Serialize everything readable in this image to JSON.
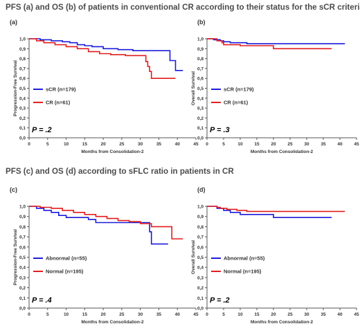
{
  "section_titles": {
    "top": "PFS (a) and OS (b) of patients in conventional CR according to their status for the sCR criteria",
    "bottom": "PFS (c) and OS (d) according to sFLC ratio in patients in CR"
  },
  "colors": {
    "blue": "#1a1adb",
    "red": "#e31b1b",
    "axis": "#555555",
    "text": "#333333"
  },
  "chart_data": [
    {
      "panel": "(a)",
      "type": "line",
      "step": true,
      "ylabel": "Progression-Free Survival",
      "xlabel": "Months from Consolidation-2",
      "xlim": [
        0,
        45
      ],
      "ylim": [
        0,
        1.0
      ],
      "xticks": [
        0,
        5,
        10,
        15,
        20,
        25,
        30,
        35,
        40,
        45
      ],
      "yticks": [
        "0,0",
        "0,1",
        "0,2",
        "0,3",
        "0,4",
        "0,5",
        "0,6",
        "0,7",
        "0,8",
        "0,9",
        "1,0"
      ],
      "legend_position": "left",
      "annotation": "P = .2",
      "series": [
        {
          "name": "sCR (n=179)",
          "color": "blue",
          "points": [
            [
              0,
              1.0
            ],
            [
              3,
              0.99
            ],
            [
              6,
              0.98
            ],
            [
              9,
              0.97
            ],
            [
              11,
              0.96
            ],
            [
              13,
              0.94
            ],
            [
              15,
              0.93
            ],
            [
              17,
              0.92
            ],
            [
              20,
              0.9
            ],
            [
              24,
              0.89
            ],
            [
              28,
              0.88
            ],
            [
              32,
              0.88
            ],
            [
              37.5,
              0.88
            ],
            [
              38,
              0.78
            ],
            [
              39.5,
              0.78
            ],
            [
              39.5,
              0.68
            ],
            [
              41.5,
              0.68
            ]
          ]
        },
        {
          "name": "CR (n=61)",
          "color": "red",
          "points": [
            [
              0,
              1.0
            ],
            [
              2,
              0.98
            ],
            [
              4,
              0.96
            ],
            [
              7,
              0.94
            ],
            [
              10,
              0.92
            ],
            [
              13,
              0.9
            ],
            [
              16,
              0.87
            ],
            [
              19,
              0.85
            ],
            [
              22,
              0.84
            ],
            [
              26,
              0.83
            ],
            [
              31,
              0.83
            ],
            [
              31.5,
              0.77
            ],
            [
              32,
              0.72
            ],
            [
              32.5,
              0.67
            ],
            [
              33,
              0.6
            ],
            [
              39.5,
              0.6
            ]
          ]
        }
      ]
    },
    {
      "panel": "(b)",
      "type": "line",
      "step": true,
      "ylabel": "Overall Survival",
      "xlabel": "Months from Consolidation-2",
      "xlim": [
        0,
        45
      ],
      "ylim": [
        0,
        1.0
      ],
      "xticks": [
        0,
        5,
        10,
        15,
        20,
        25,
        30,
        35,
        40,
        45
      ],
      "yticks": [
        "0,0",
        "0,1",
        "0,2",
        "0,3",
        "0,4",
        "0,5",
        "0,6",
        "0,7",
        "0,8",
        "0,9",
        "1,0"
      ],
      "legend_position": "left",
      "annotation": "P = .3",
      "series": [
        {
          "name": "sCR (n=179)",
          "color": "blue",
          "points": [
            [
              0,
              1.0
            ],
            [
              2,
              0.99
            ],
            [
              4,
              0.98
            ],
            [
              5,
              0.97
            ],
            [
              7,
              0.96
            ],
            [
              10,
              0.96
            ],
            [
              12,
              0.95
            ],
            [
              41.5,
              0.95
            ]
          ]
        },
        {
          "name": "CR (n=61)",
          "color": "red",
          "points": [
            [
              0,
              1.0
            ],
            [
              3,
              0.98
            ],
            [
              4.5,
              0.96
            ],
            [
              5,
              0.94
            ],
            [
              10,
              0.93
            ],
            [
              20,
              0.93
            ],
            [
              20,
              0.9
            ],
            [
              37.5,
              0.9
            ]
          ]
        }
      ]
    },
    {
      "panel": "(c)",
      "type": "line",
      "step": true,
      "ylabel": "Progression-Free Survival",
      "xlabel": "Months from Consolidation-2",
      "xlim": [
        0,
        45
      ],
      "ylim": [
        0,
        1.0
      ],
      "xticks": [
        0,
        5,
        10,
        15,
        20,
        25,
        30,
        35,
        40,
        45
      ],
      "yticks": [
        "0,0",
        "0,1",
        "0,2",
        "0,3",
        "0,4",
        "0,5",
        "0,6",
        "0,7",
        "0,8",
        "0,9",
        "1,0"
      ],
      "legend_position": "left",
      "annotation": "P = .4",
      "series": [
        {
          "name": "Abnormal (n=55)",
          "color": "blue",
          "points": [
            [
              0,
              1.0
            ],
            [
              2,
              0.98
            ],
            [
              4,
              0.96
            ],
            [
              6,
              0.94
            ],
            [
              8,
              0.91
            ],
            [
              10,
              0.89
            ],
            [
              15,
              0.89
            ],
            [
              16,
              0.87
            ],
            [
              18,
              0.84
            ],
            [
              32,
              0.84
            ],
            [
              32.5,
              0.75
            ],
            [
              33,
              0.63
            ],
            [
              37.5,
              0.63
            ]
          ]
        },
        {
          "name": "Normal (n=195)",
          "color": "red",
          "points": [
            [
              0,
              1.0
            ],
            [
              3,
              0.99
            ],
            [
              6,
              0.98
            ],
            [
              9,
              0.96
            ],
            [
              12,
              0.94
            ],
            [
              15,
              0.92
            ],
            [
              18,
              0.9
            ],
            [
              21,
              0.88
            ],
            [
              24,
              0.86
            ],
            [
              27,
              0.85
            ],
            [
              30,
              0.83
            ],
            [
              33,
              0.8
            ],
            [
              38,
              0.8
            ],
            [
              38.5,
              0.68
            ],
            [
              41.5,
              0.68
            ]
          ]
        }
      ]
    },
    {
      "panel": "(d)",
      "type": "line",
      "step": true,
      "ylabel": "Overall Survival",
      "xlabel": "Months from Consolidation-2",
      "xlim": [
        0,
        45
      ],
      "ylim": [
        0,
        1.0
      ],
      "xticks": [
        0,
        5,
        10,
        15,
        20,
        25,
        30,
        35,
        40,
        45
      ],
      "yticks": [
        "0,0",
        "0,1",
        "0,2",
        "0,3",
        "0,4",
        "0,5",
        "0,6",
        "0,7",
        "0,8",
        "0,9",
        "1,0"
      ],
      "legend_position": "left",
      "annotation": "P = .2",
      "series": [
        {
          "name": "Abnormal (n=55)",
          "color": "blue",
          "points": [
            [
              0,
              1.0
            ],
            [
              3,
              0.98
            ],
            [
              5,
              0.96
            ],
            [
              7,
              0.94
            ],
            [
              10,
              0.93
            ],
            [
              10,
              0.92
            ],
            [
              20,
              0.92
            ],
            [
              20,
              0.89
            ],
            [
              37.5,
              0.89
            ]
          ]
        },
        {
          "name": "Normal (n=195)",
          "color": "red",
          "points": [
            [
              0,
              1.0
            ],
            [
              3,
              0.99
            ],
            [
              4,
              0.98
            ],
            [
              6,
              0.97
            ],
            [
              9,
              0.96
            ],
            [
              12,
              0.95
            ],
            [
              41.5,
              0.95
            ]
          ]
        }
      ]
    }
  ]
}
